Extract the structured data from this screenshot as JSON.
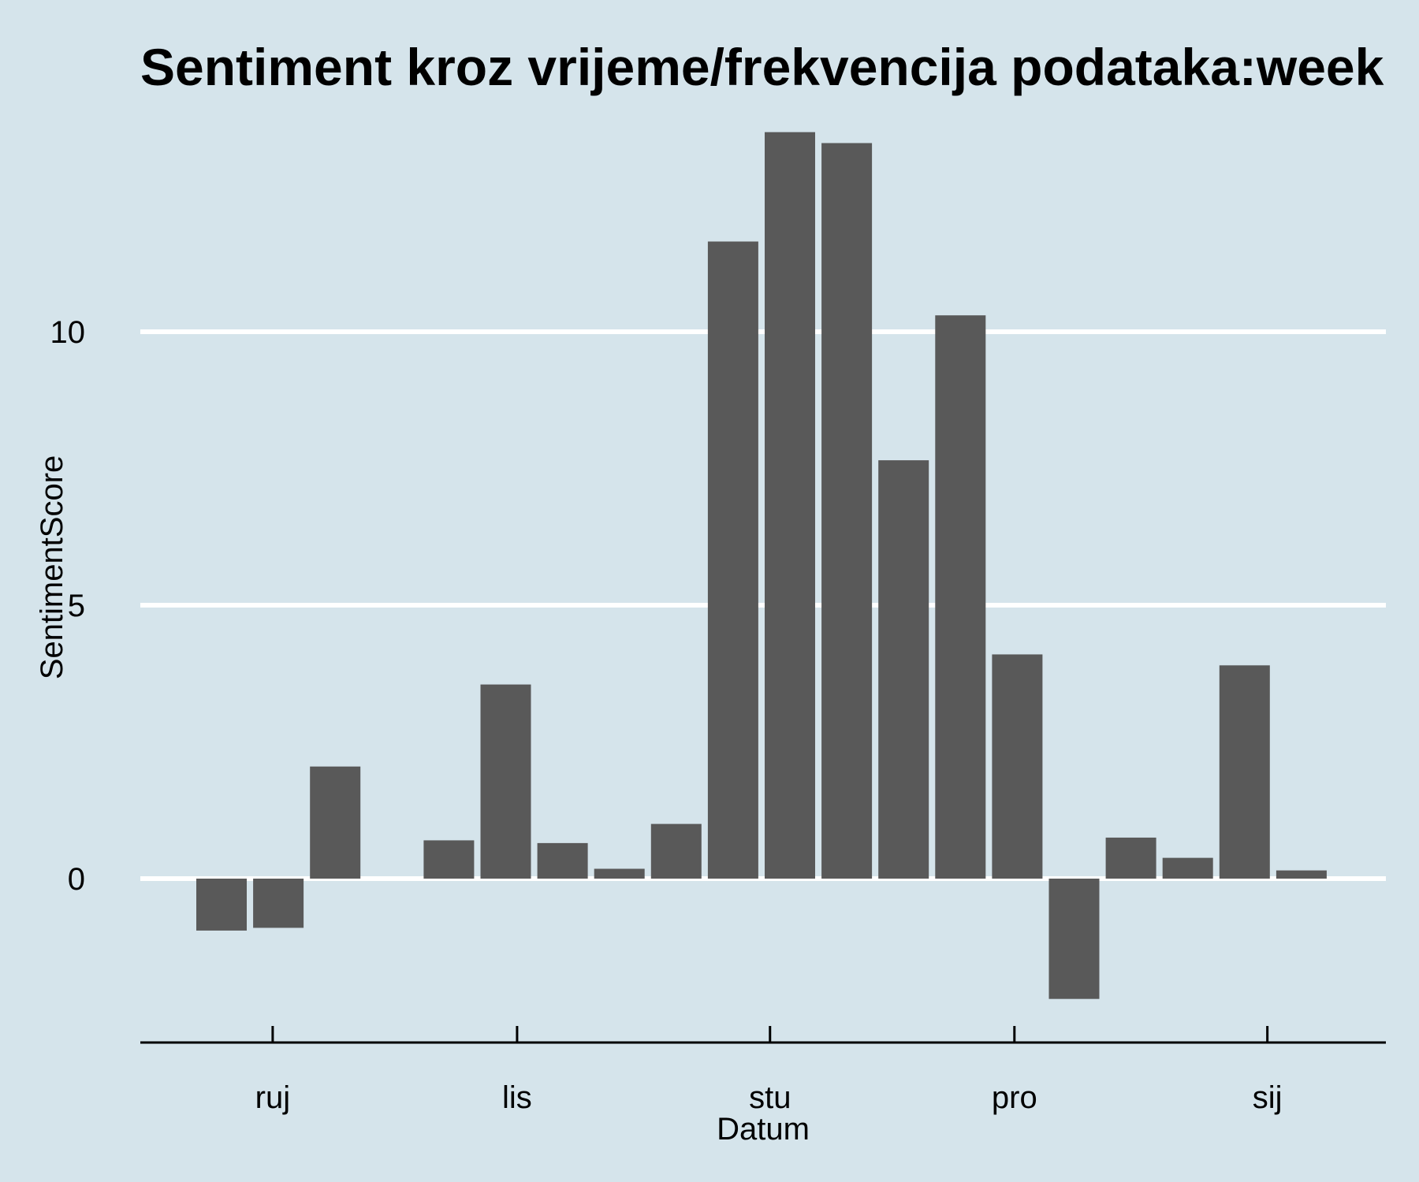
{
  "chart_data": {
    "type": "bar",
    "title": "Sentiment kroz vrijeme/frekvencija podataka:week",
    "xlabel": "Datum",
    "ylabel": "SentimentScore",
    "grid": "horizontal-major",
    "legend": "none",
    "ylim": [
      -3,
      13.8
    ],
    "yticks": [
      0,
      5,
      10
    ],
    "x_ticks": [
      {
        "label": "ruj",
        "slot": 0.9
      },
      {
        "label": "lis",
        "slot": 5.2
      },
      {
        "label": "stu",
        "slot": 9.65
      },
      {
        "label": "pro",
        "slot": 13.95
      },
      {
        "label": "sij",
        "slot": 18.4
      }
    ],
    "bars": [
      {
        "slot": 0,
        "value": -0.95
      },
      {
        "slot": 1,
        "value": -0.9
      },
      {
        "slot": 2,
        "value": 2.05
      },
      {
        "slot": 4,
        "value": 0.7
      },
      {
        "slot": 5,
        "value": 3.55
      },
      {
        "slot": 6,
        "value": 0.65
      },
      {
        "slot": 7,
        "value": 0.18
      },
      {
        "slot": 8,
        "value": 1.0
      },
      {
        "slot": 9,
        "value": 11.65
      },
      {
        "slot": 10,
        "value": 13.65
      },
      {
        "slot": 11,
        "value": 13.45
      },
      {
        "slot": 12,
        "value": 7.65
      },
      {
        "slot": 13,
        "value": 10.3
      },
      {
        "slot": 14,
        "value": 4.1
      },
      {
        "slot": 15,
        "value": -2.2
      },
      {
        "slot": 16,
        "value": 0.75
      },
      {
        "slot": 17,
        "value": 0.38
      },
      {
        "slot": 18,
        "value": 3.9
      },
      {
        "slot": 19,
        "value": 0.15
      }
    ],
    "colors": {
      "background": "#d5e4eb",
      "bar": "#595959",
      "grid": "#ffffff",
      "axis": "#000000"
    }
  }
}
